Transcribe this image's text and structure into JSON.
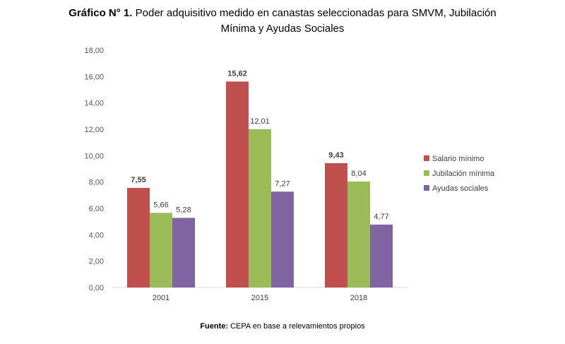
{
  "header": {
    "title_prefix": "Gráfico N° 1.",
    "title_line1": "Poder adquisitivo medido en canastas seleccionadas para SMVM, Jubilación",
    "title_line2": "Mínima y Ayudas Sociales"
  },
  "footer": {
    "source_prefix": "Fuente:",
    "source_text": "CEPA en base a relevamientos propios"
  },
  "chart_data": {
    "type": "bar",
    "title": "Poder adquisitivo medido en canastas seleccionadas para SMVM, Jubilación Mínima y Ayudas Sociales",
    "categories": [
      "2001",
      "2015",
      "2018"
    ],
    "series": [
      {
        "name": "Salario mínimo",
        "values": [
          7.55,
          15.62,
          9.43
        ],
        "labels": [
          "7,55",
          "15,62",
          "9,43"
        ],
        "color": "#c0504d",
        "label_bold": true
      },
      {
        "name": "Jubilación mínima",
        "values": [
          5.66,
          12.01,
          8.04
        ],
        "labels": [
          "5,66",
          "12,01",
          "8,04"
        ],
        "color": "#9bbb59",
        "label_bold": false
      },
      {
        "name": "Ayudas sociales",
        "values": [
          5.28,
          7.27,
          4.77
        ],
        "labels": [
          "5,28",
          "7,27",
          "4,77"
        ],
        "color": "#8064a2",
        "label_bold": false
      }
    ],
    "yticks": [
      "0,00",
      "2,00",
      "4,00",
      "6,00",
      "8,00",
      "10,00",
      "12,00",
      "14,00",
      "16,00",
      "18,00"
    ],
    "ylim": [
      0,
      18
    ],
    "legend_position": "right",
    "grid": false
  }
}
